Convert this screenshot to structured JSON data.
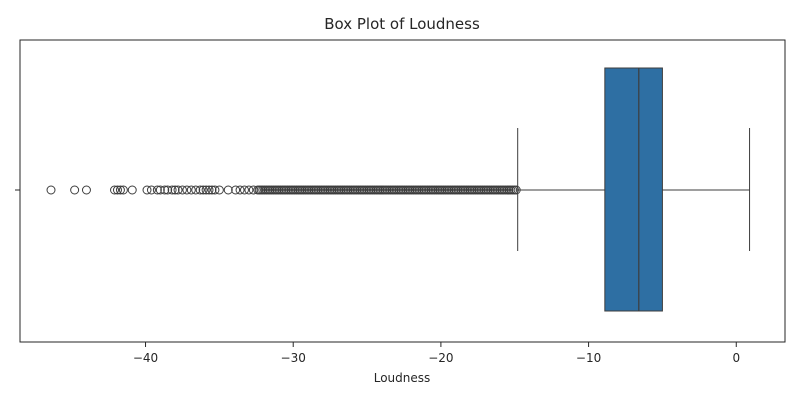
{
  "chart_data": {
    "type": "box",
    "title": "Box Plot of Loudness",
    "xlabel": "Loudness",
    "ylabel": "",
    "xlim": [
      -48.5,
      3.3
    ],
    "x_ticks": [
      -40,
      -30,
      -20,
      -10,
      0
    ],
    "x_tick_labels": [
      "−40",
      "−30",
      "−20",
      "−10",
      "0"
    ],
    "grid": false,
    "box": {
      "whisker_low": -14.8,
      "q1": -8.9,
      "median": -6.6,
      "q3": -5.0,
      "whisker_high": 0.9,
      "color": "#2e6fa3"
    },
    "outliers": [
      -46.4,
      -44.8,
      -44.0,
      -42.1,
      -41.9,
      -41.7,
      -41.5,
      -40.9,
      -39.9,
      -39.6,
      -39.2,
      -39.0,
      -38.7,
      -38.5,
      -38.2,
      -38.0,
      -37.8,
      -37.5,
      -37.2,
      -36.9,
      -36.6,
      -36.3,
      -36.1,
      -35.9,
      -35.7,
      -35.5,
      -35.3,
      -35.0,
      -34.4,
      -33.9,
      -33.6,
      -33.3,
      -33.0,
      -32.7,
      -32.4
    ]
  }
}
